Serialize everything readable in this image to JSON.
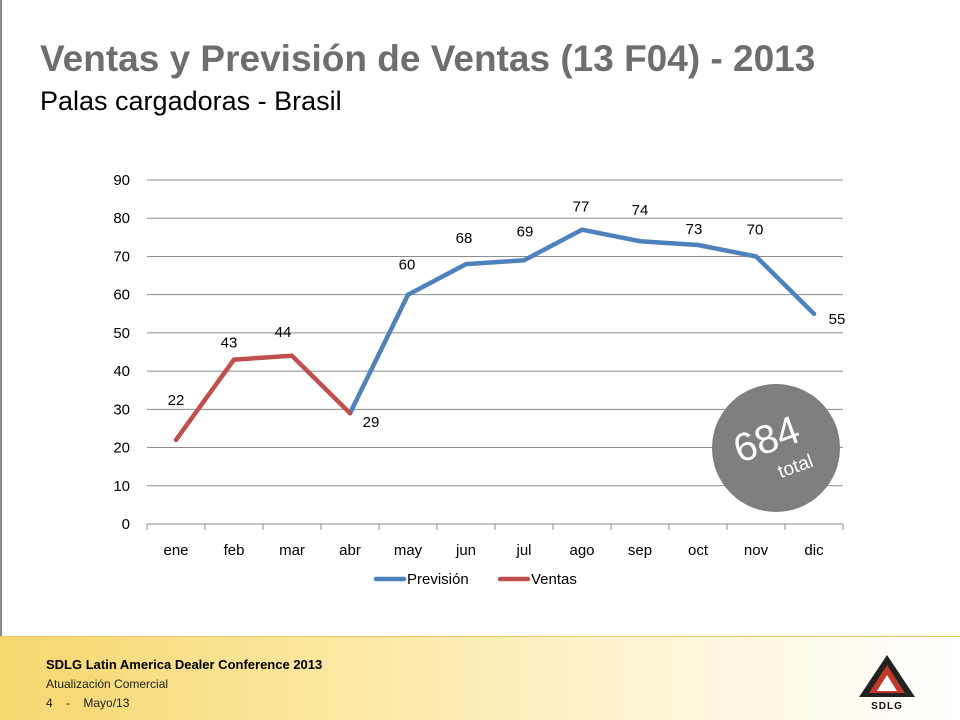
{
  "header": {
    "title": "Ventas y Previsión de Ventas (13 F04) - 2013",
    "subtitle": "Palas cargadoras - Brasil"
  },
  "chart_data": {
    "type": "line",
    "categories": [
      "ene",
      "feb",
      "mar",
      "abr",
      "may",
      "jun",
      "jul",
      "ago",
      "sep",
      "oct",
      "nov",
      "dic"
    ],
    "series": [
      {
        "name": "Previsión",
        "color": "#4f81bd",
        "values": [
          null,
          null,
          null,
          29,
          60,
          68,
          69,
          77,
          74,
          73,
          70,
          55
        ]
      },
      {
        "name": "Ventas",
        "color": "#c0504d",
        "values": [
          22,
          43,
          44,
          29,
          null,
          null,
          null,
          null,
          null,
          null,
          null,
          null
        ]
      }
    ],
    "data_labels": [
      "22",
      "43",
      "44",
      "29",
      "60",
      "68",
      "69",
      "77",
      "74",
      "73",
      "70",
      "55"
    ],
    "ylim": [
      0,
      90
    ],
    "yticks": [
      "0",
      "10",
      "20",
      "30",
      "40",
      "50",
      "60",
      "70",
      "80",
      "90"
    ],
    "grid": true,
    "legend_position": "bottom",
    "total_badge": {
      "value": "684",
      "label": "total",
      "color": "#7f7f7f"
    }
  },
  "footer": {
    "conference": "SDLG Latin America Dealer Conference 2013",
    "section": "Atualización Comercial",
    "page_number": "4",
    "separator": "-",
    "date": "Mayo/13",
    "logo_text": "SDLG"
  }
}
